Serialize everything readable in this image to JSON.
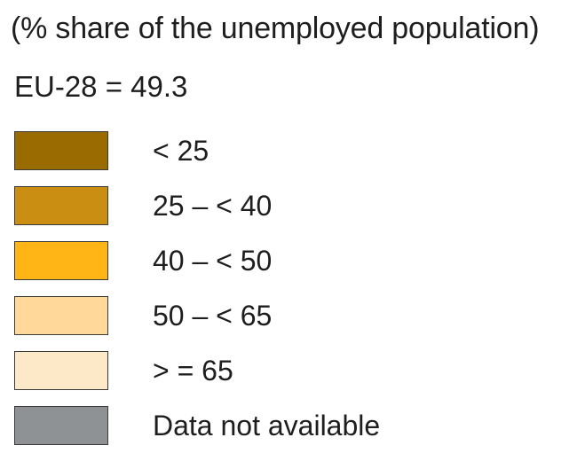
{
  "legend": {
    "subtitle": "(% share of the unemployed population)",
    "eu_value": "EU-28 = 49.3",
    "items": [
      {
        "label": "< 25",
        "color": "#9a6c00"
      },
      {
        "label": "25 – < 40",
        "color": "#c98e12"
      },
      {
        "label": "40 – < 50",
        "color": "#ffb515"
      },
      {
        "label": "50 – < 65",
        "color": "#ffd89a"
      },
      {
        "label": "> = 65",
        "color": "#fde8c8"
      },
      {
        "label": "Data not available",
        "color": "#8e9295"
      }
    ]
  }
}
